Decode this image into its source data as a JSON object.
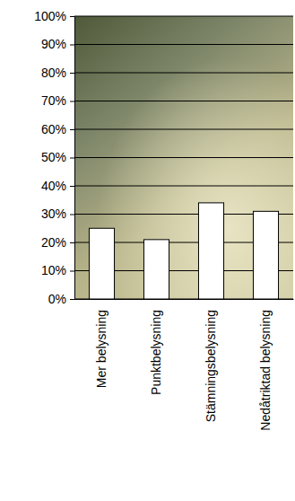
{
  "chart_data": {
    "type": "bar",
    "categories": [
      "Mer belysning",
      "Punktbelysning",
      "Stämningsbelysning",
      "Nedåtriktad belysning"
    ],
    "values": [
      25,
      21,
      34,
      31
    ],
    "color": "#ffffff",
    "ylim": [
      0,
      100
    ],
    "yticks": [
      {
        "value": 0,
        "label": "0%"
      },
      {
        "value": 10,
        "label": "10%"
      },
      {
        "value": 20,
        "label": "20%"
      },
      {
        "value": 30,
        "label": "30%"
      },
      {
        "value": 40,
        "label": "40%"
      },
      {
        "value": 50,
        "label": "50%"
      },
      {
        "value": 60,
        "label": "60%"
      },
      {
        "value": 70,
        "label": "70%"
      },
      {
        "value": 80,
        "label": "80%"
      },
      {
        "value": 90,
        "label": "90%"
      },
      {
        "value": 100,
        "label": "100%"
      }
    ],
    "grid": true
  }
}
